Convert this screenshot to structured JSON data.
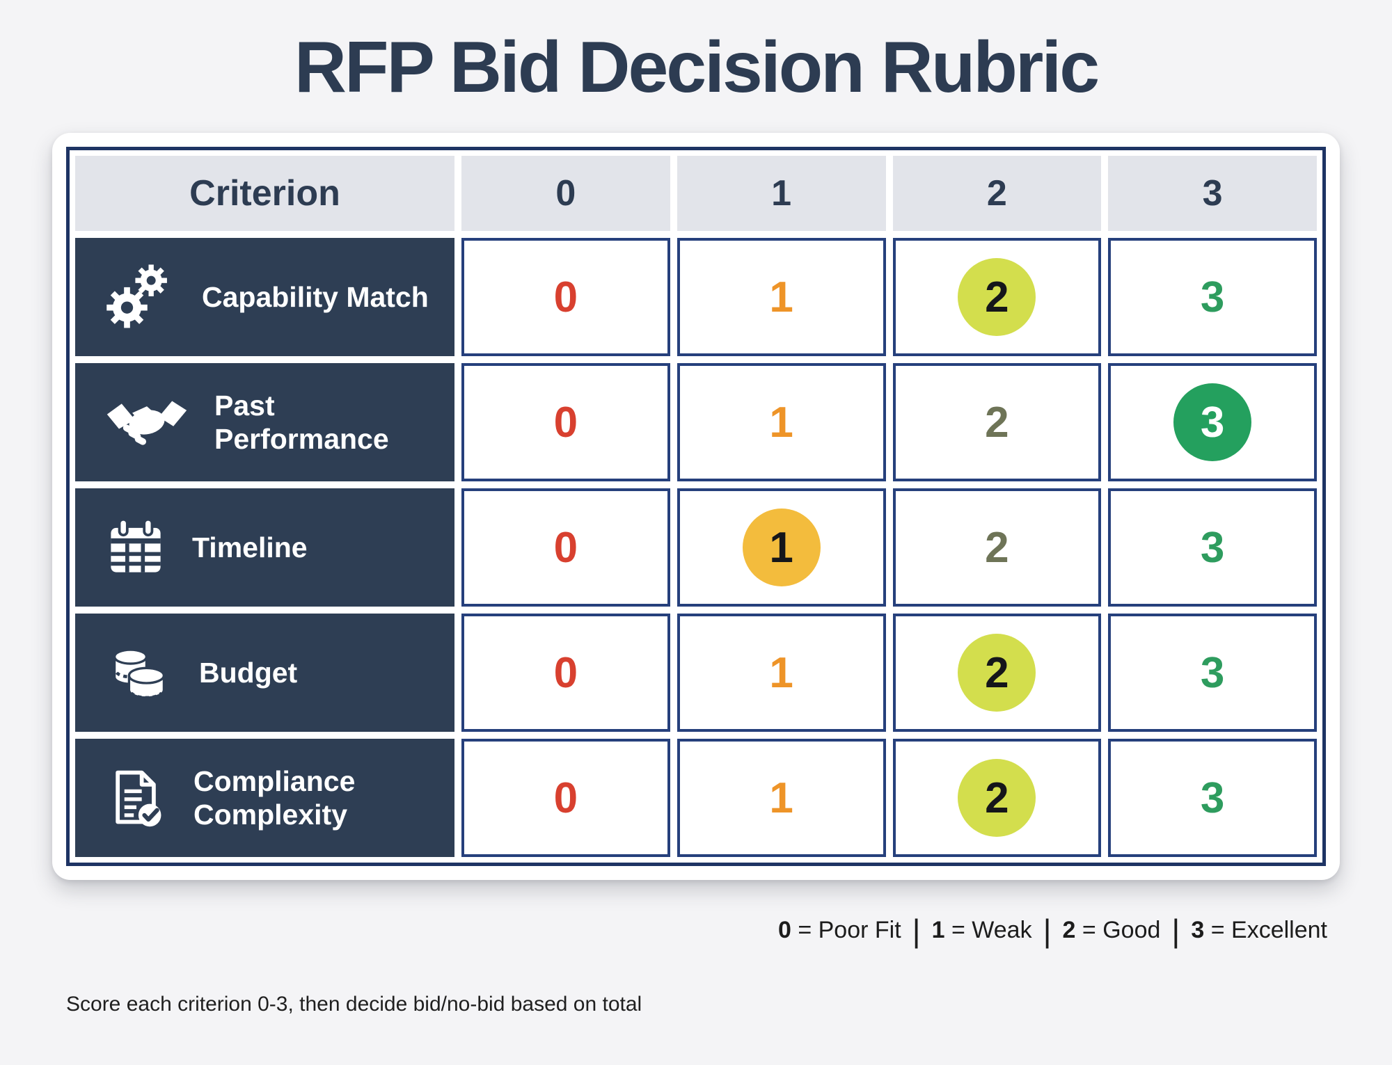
{
  "page": {
    "title": "RFP Bid Decision Rubric",
    "footnote": "Score each criterion 0-3, then decide bid/no-bid based on total"
  },
  "table": {
    "header": [
      "Criterion",
      "0",
      "1",
      "2",
      "3"
    ],
    "rows": [
      {
        "label": "Capability Match",
        "icon": "gears-icon",
        "scores": [
          "0",
          "1",
          "2",
          "3"
        ],
        "selected": 2
      },
      {
        "label": "Past Performance",
        "icon": "handshake-icon",
        "scores": [
          "0",
          "1",
          "2",
          "3"
        ],
        "selected": 3
      },
      {
        "label": "Timeline",
        "icon": "calendar-icon",
        "scores": [
          "0",
          "1",
          "2",
          "3"
        ],
        "selected": 1
      },
      {
        "label": "Budget",
        "icon": "coins-icon",
        "scores": [
          "0",
          "1",
          "2",
          "3"
        ],
        "selected": 2
      },
      {
        "label": "Compliance Complexity",
        "icon": "document-check-icon",
        "scores": [
          "0",
          "1",
          "2",
          "3"
        ],
        "selected": 2
      }
    ]
  },
  "legend": {
    "separator": "|",
    "items": [
      {
        "score": "0",
        "eq": " = ",
        "label": "Poor Fit"
      },
      {
        "score": "1",
        "eq": " = ",
        "label": "Weak"
      },
      {
        "score": "2",
        "eq": " = ",
        "label": "Good"
      },
      {
        "score": "3",
        "eq": " = ",
        "label": "Excellent"
      }
    ]
  },
  "colors": {
    "table_border": "#1e3464",
    "cell_border": "#26407c",
    "header_bg": "#e2e4ea",
    "navy": "#2e3e54",
    "score0": "#d8402f",
    "score1": "#ee9428",
    "score2": "#6e7457",
    "score3": "#2e9c5e",
    "sel1_bg": "#f3bc3d",
    "sel2_bg": "#d3de4d",
    "sel3_bg": "#24a05e"
  }
}
